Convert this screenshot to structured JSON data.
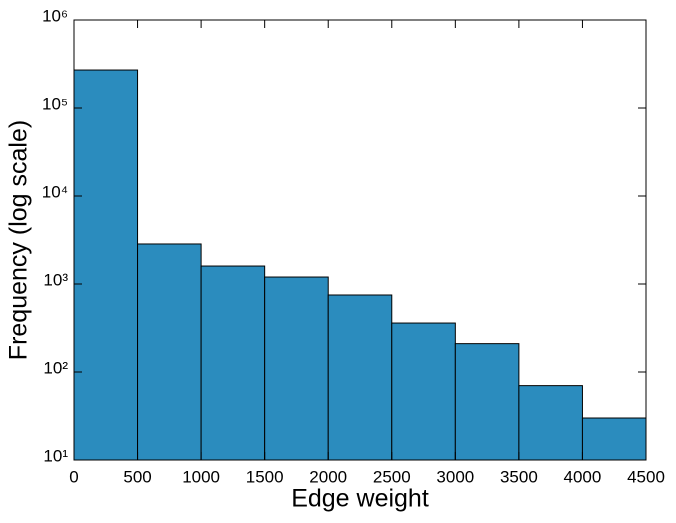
{
  "chart_data": {
    "type": "histogram",
    "x_label": "Edge weight",
    "y_label": "Frequency (log scale)",
    "bins": [
      0,
      500,
      1000,
      1500,
      2000,
      2500,
      3000,
      3500,
      4000,
      4500
    ],
    "values": [
      270000,
      2850,
      1600,
      1200,
      750,
      360,
      210,
      70,
      30
    ],
    "color": "#2b8cbe",
    "edge_color": "#000000",
    "xlim": [
      0,
      4500
    ],
    "xticks": [
      0,
      500,
      1000,
      1500,
      2000,
      2500,
      3000,
      3500,
      4000,
      4500
    ],
    "ylim": [
      10,
      1000000
    ],
    "y_scale": "log",
    "yticks": [
      {
        "value": 10,
        "label": "10¹"
      },
      {
        "value": 100,
        "label": "10²"
      },
      {
        "value": 1000,
        "label": "10³"
      },
      {
        "value": 10000,
        "label": "10⁴"
      },
      {
        "value": 100000,
        "label": "10⁵"
      },
      {
        "value": 1000000,
        "label": "10⁶"
      }
    ]
  }
}
